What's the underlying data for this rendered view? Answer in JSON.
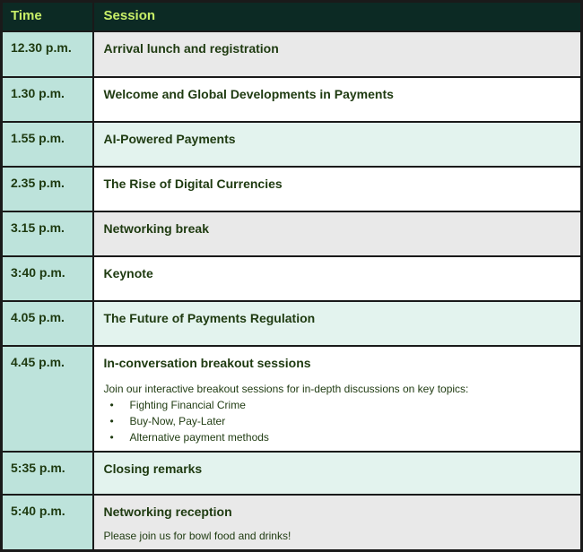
{
  "header": {
    "time_label": "Time",
    "session_label": "Session"
  },
  "colors": {
    "header_background": "#0c2a24",
    "header_text": "#c8ef68",
    "time_column_background": "#bde3db",
    "session_grey": "#e9e9e9",
    "session_white": "#ffffff",
    "session_mint": "#e3f3ee",
    "body_text": "#1e3a10",
    "border": "#1a1a1a"
  },
  "rows": [
    {
      "time": "12.30 p.m.",
      "title": "Arrival lunch and registration",
      "variant": "grey"
    },
    {
      "time": "1.30 p.m.",
      "title": "Welcome and Global Developments in Payments",
      "variant": "white"
    },
    {
      "time": "1.55 p.m.",
      "title": "AI-Powered Payments",
      "variant": "mint"
    },
    {
      "time": "2.35 p.m.",
      "title": "The Rise of Digital Currencies",
      "variant": "white"
    },
    {
      "time": "3.15 p.m.",
      "title": "Networking break",
      "variant": "grey"
    },
    {
      "time": "3:40 p.m.",
      "title": "Keynote",
      "variant": "white"
    },
    {
      "time": "4.05 p.m.",
      "title": "The Future of Payments Regulation",
      "variant": "mint"
    },
    {
      "time": "4.45 p.m.",
      "title": "In-conversation breakout sessions",
      "description": "Join our interactive breakout sessions for in-depth discussions on key topics:",
      "bullets": [
        "Fighting Financial Crime",
        "Buy-Now, Pay-Later",
        "Alternative payment methods"
      ],
      "variant": "white"
    },
    {
      "time": "5:35 p.m.",
      "title": "Closing remarks",
      "variant": "mint"
    },
    {
      "time": "5:40 p.m.",
      "title": "Networking reception",
      "description": "Please join us for bowl food and drinks!",
      "variant": "grey"
    }
  ]
}
